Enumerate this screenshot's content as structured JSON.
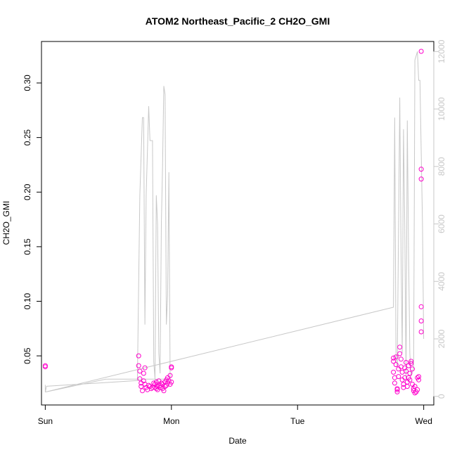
{
  "chart_data": {
    "type": "scatter",
    "title": "ATOM2 Northeast_Pacific_2 CH2O_GMI",
    "xlabel": "Date",
    "ylabel": "CH2O_GMI",
    "x_ticks": [
      "Sun",
      "Mon",
      "Tue",
      "Wed"
    ],
    "y_ticks": [
      "0.05",
      "0.10",
      "0.15",
      "0.20",
      "0.25",
      "0.30"
    ],
    "y2_ticks": [
      "0",
      "2000",
      "4000",
      "6000",
      "8000",
      "10000",
      "12000"
    ],
    "xlim": [
      -0.03,
      3.08
    ],
    "ylim": [
      0.005,
      0.338
    ],
    "y2lim": [
      -300,
      12350
    ],
    "colors": {
      "points": "#ff00cc",
      "line": "#c8c8c8",
      "frame": "#000000",
      "right_axis": "#c8c8c8"
    },
    "series": [
      {
        "axis": "left",
        "style": "open-circle",
        "points": [
          [
            0.0,
            0.041
          ],
          [
            0.0,
            0.04
          ],
          [
            0.74,
            0.05
          ],
          [
            0.74,
            0.041
          ],
          [
            0.75,
            0.036
          ],
          [
            0.75,
            0.029
          ],
          [
            0.76,
            0.025
          ],
          [
            0.76,
            0.022
          ],
          [
            0.77,
            0.018
          ],
          [
            0.78,
            0.027
          ],
          [
            0.78,
            0.034
          ],
          [
            0.79,
            0.039
          ],
          [
            0.79,
            0.024
          ],
          [
            0.8,
            0.021
          ],
          [
            0.81,
            0.019
          ],
          [
            0.82,
            0.023
          ],
          [
            0.83,
            0.022
          ],
          [
            0.84,
            0.02
          ],
          [
            0.85,
            0.021
          ],
          [
            0.86,
            0.025
          ],
          [
            0.87,
            0.024
          ],
          [
            0.87,
            0.021
          ],
          [
            0.88,
            0.02
          ],
          [
            0.88,
            0.026
          ],
          [
            0.89,
            0.022
          ],
          [
            0.89,
            0.019
          ],
          [
            0.9,
            0.027
          ],
          [
            0.91,
            0.023
          ],
          [
            0.91,
            0.021
          ],
          [
            0.92,
            0.025
          ],
          [
            0.93,
            0.024
          ],
          [
            0.93,
            0.02
          ],
          [
            0.94,
            0.018
          ],
          [
            0.95,
            0.022
          ],
          [
            0.95,
            0.026
          ],
          [
            0.96,
            0.028
          ],
          [
            0.96,
            0.023
          ],
          [
            0.97,
            0.025
          ],
          [
            0.97,
            0.03
          ],
          [
            0.98,
            0.027
          ],
          [
            0.99,
            0.024
          ],
          [
            0.99,
            0.032
          ],
          [
            1.0,
            0.039
          ],
          [
            1.0,
            0.04
          ],
          [
            1.0,
            0.026
          ],
          [
            2.76,
            0.048
          ],
          [
            2.76,
            0.045
          ],
          [
            2.76,
            0.035
          ],
          [
            2.77,
            0.03
          ],
          [
            2.77,
            0.025
          ],
          [
            2.78,
            0.042
          ],
          [
            2.78,
            0.049
          ],
          [
            2.79,
            0.02
          ],
          [
            2.79,
            0.017
          ],
          [
            2.79,
            0.019
          ],
          [
            2.8,
            0.031
          ],
          [
            2.8,
            0.038
          ],
          [
            2.81,
            0.058
          ],
          [
            2.81,
            0.052
          ],
          [
            2.82,
            0.047
          ],
          [
            2.82,
            0.04
          ],
          [
            2.83,
            0.035
          ],
          [
            2.83,
            0.028
          ],
          [
            2.84,
            0.024
          ],
          [
            2.84,
            0.021
          ],
          [
            2.85,
            0.03
          ],
          [
            2.85,
            0.039
          ],
          [
            2.86,
            0.044
          ],
          [
            2.86,
            0.036
          ],
          [
            2.87,
            0.026
          ],
          [
            2.87,
            0.022
          ],
          [
            2.88,
            0.03
          ],
          [
            2.88,
            0.041
          ],
          [
            2.89,
            0.034
          ],
          [
            2.89,
            0.028
          ],
          [
            2.9,
            0.043
          ],
          [
            2.9,
            0.045
          ],
          [
            2.91,
            0.038
          ],
          [
            2.91,
            0.024
          ],
          [
            2.92,
            0.02
          ],
          [
            2.92,
            0.018
          ],
          [
            2.93,
            0.022
          ],
          [
            2.93,
            0.016
          ],
          [
            2.94,
            0.017
          ],
          [
            2.95,
            0.03
          ],
          [
            2.95,
            0.019
          ],
          [
            2.96,
            0.031
          ],
          [
            2.96,
            0.028
          ],
          [
            2.98,
            0.329
          ],
          [
            2.98,
            0.221
          ],
          [
            2.98,
            0.212
          ],
          [
            2.98,
            0.095
          ],
          [
            2.98,
            0.082
          ],
          [
            2.98,
            0.072
          ]
        ]
      },
      {
        "axis": "right",
        "style": "line",
        "points": [
          [
            0.0,
            400
          ],
          [
            0.0,
            150
          ],
          [
            0.01,
            350
          ],
          [
            0.73,
            550
          ],
          [
            0.75,
            7000
          ],
          [
            0.77,
            9700
          ],
          [
            0.78,
            9700
          ],
          [
            0.79,
            2500
          ],
          [
            0.8,
            7000
          ],
          [
            0.82,
            10100
          ],
          [
            0.83,
            8900
          ],
          [
            0.85,
            8900
          ],
          [
            0.86,
            1200
          ],
          [
            0.87,
            600
          ],
          [
            0.88,
            7000
          ],
          [
            0.89,
            6000
          ],
          [
            0.9,
            1500
          ],
          [
            0.91,
            800
          ],
          [
            0.92,
            6000
          ],
          [
            0.93,
            8000
          ],
          [
            0.94,
            10800
          ],
          [
            0.95,
            10500
          ],
          [
            0.96,
            2500
          ],
          [
            0.97,
            3500
          ],
          [
            0.98,
            7800
          ],
          [
            0.99,
            600
          ],
          [
            0.48,
            600
          ],
          [
            0.0,
            150
          ],
          [
            2.76,
            3100
          ],
          [
            2.77,
            9700
          ],
          [
            2.78,
            1500
          ],
          [
            2.79,
            1000
          ],
          [
            2.81,
            10400
          ],
          [
            2.82,
            5000
          ],
          [
            2.83,
            1500
          ],
          [
            2.84,
            9300
          ],
          [
            2.85,
            6000
          ],
          [
            2.86,
            600
          ],
          [
            2.87,
            9600
          ],
          [
            2.88,
            5000
          ],
          [
            2.89,
            1500
          ],
          [
            2.9,
            700
          ],
          [
            2.92,
            1000
          ],
          [
            2.93,
            11700
          ],
          [
            2.95,
            12000
          ],
          [
            2.96,
            11000
          ],
          [
            2.97,
            11000
          ],
          [
            2.99,
            6000
          ],
          [
            3.0,
            2000
          ]
        ]
      }
    ]
  }
}
